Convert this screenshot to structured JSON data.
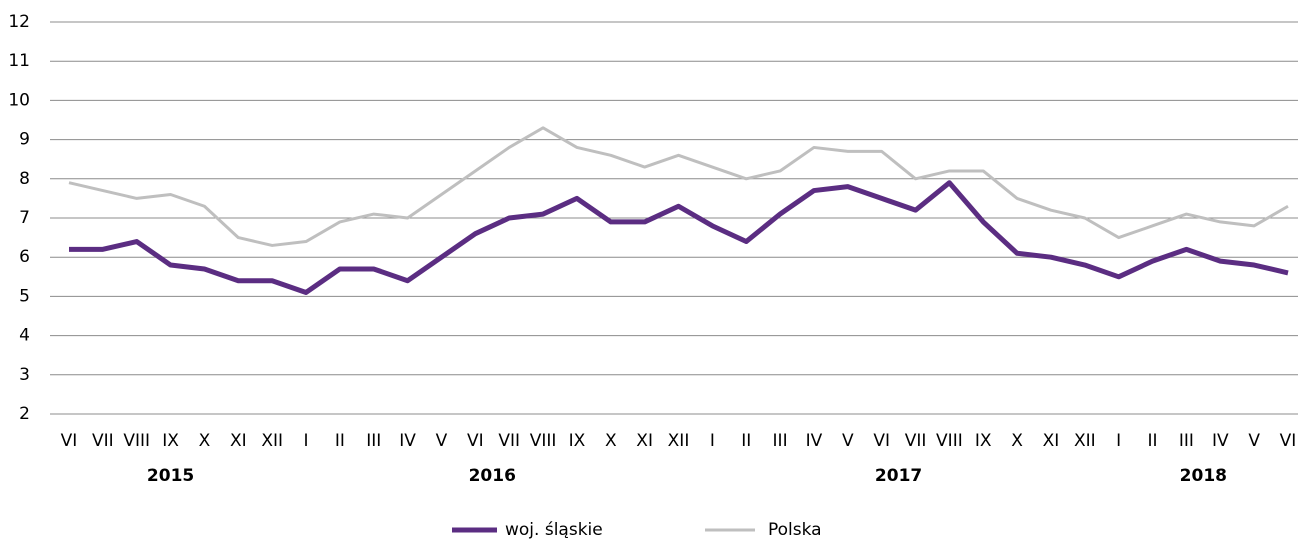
{
  "chart_data": {
    "type": "line",
    "categories": [
      "VI",
      "VII",
      "VIII",
      "IX",
      "X",
      "XI",
      "XII",
      "I",
      "II",
      "III",
      "IV",
      "V",
      "VI",
      "VII",
      "VIII",
      "IX",
      "X",
      "XI",
      "XII",
      "I",
      "II",
      "III",
      "IV",
      "V",
      "VI",
      "VII",
      "VIII",
      "IX",
      "X",
      "XI",
      "XII",
      "I",
      "II",
      "III",
      "IV",
      "V",
      "VI"
    ],
    "year_labels": [
      "2015",
      "2016",
      "2017",
      "2018"
    ],
    "series": [
      {
        "name": "woj. śląskie",
        "color": "#5b2d82",
        "values": [
          6.2,
          6.2,
          6.4,
          5.8,
          5.7,
          5.4,
          5.4,
          5.1,
          5.7,
          5.7,
          5.4,
          6.0,
          6.6,
          7.0,
          7.1,
          7.5,
          6.9,
          6.9,
          7.3,
          6.8,
          6.4,
          7.1,
          7.7,
          7.8,
          7.5,
          7.2,
          7.9,
          6.9,
          6.1,
          6.0,
          5.8,
          5.5,
          5.9,
          6.2,
          5.9,
          5.8,
          5.6
        ]
      },
      {
        "name": "Polska",
        "color": "#bfbfbf",
        "values": [
          7.9,
          7.7,
          7.5,
          7.6,
          7.3,
          6.5,
          6.3,
          6.4,
          6.9,
          7.1,
          7.0,
          7.6,
          8.2,
          8.8,
          9.3,
          8.8,
          8.6,
          8.3,
          8.6,
          8.3,
          8.0,
          8.2,
          8.8,
          8.7,
          8.7,
          8.0,
          8.2,
          8.2,
          7.5,
          7.2,
          7.0,
          6.5,
          6.8,
          7.1,
          6.9,
          6.8,
          7.3
        ]
      }
    ],
    "ylim": [
      2,
      12
    ],
    "yticks": [
      2,
      3,
      4,
      5,
      6,
      7,
      8,
      9,
      10,
      11,
      12
    ],
    "grid": true,
    "legend": "bottom"
  }
}
